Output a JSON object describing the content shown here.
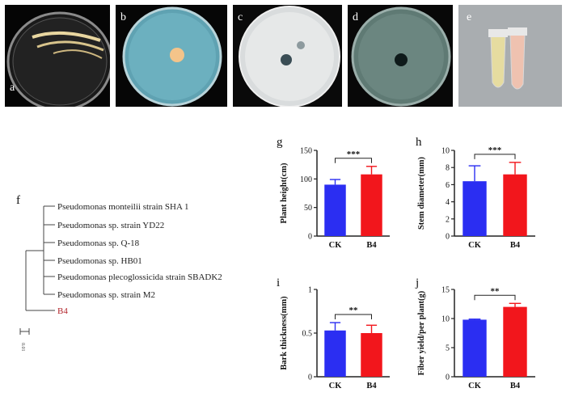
{
  "labels": {
    "a": "a",
    "b": "b",
    "c": "c",
    "d": "d",
    "e": "e",
    "f": "f",
    "g": "g",
    "h": "h",
    "i": "i",
    "j": "j"
  },
  "tree": {
    "taxa": [
      "Pseudomonas monteilii strain SHA 1",
      "Pseudomonas sp. strain YD22",
      "Pseudomonas sp. Q-18",
      "Pseudomonas sp. HB01",
      "Pseudomonas plecoglossicida strain SBADK2",
      "Pseudomonas sp. strain M2",
      "B4"
    ],
    "scale_label": "0.01",
    "highlight_color": "#b2242a"
  },
  "colors": {
    "ck": "#2b2ef2",
    "b4": "#f2161c",
    "axis": "#222222"
  },
  "chart_data": [
    {
      "id": "g",
      "type": "bar",
      "categories": [
        "CK",
        "B4"
      ],
      "values": [
        90,
        108
      ],
      "errors": [
        9,
        14
      ],
      "ylabel": "Plant height(cm)",
      "ylim": [
        0,
        150
      ],
      "yticks": [
        0,
        50,
        100,
        150
      ],
      "significance": "***"
    },
    {
      "id": "h",
      "type": "bar",
      "categories": [
        "CK",
        "B4"
      ],
      "values": [
        6.4,
        7.2
      ],
      "errors": [
        1.8,
        1.4
      ],
      "ylabel": "Stem diameter(mm)",
      "ylim": [
        0,
        10
      ],
      "yticks": [
        0,
        2,
        4,
        6,
        8,
        10
      ],
      "significance": "***"
    },
    {
      "id": "i",
      "type": "bar",
      "categories": [
        "CK",
        "B4"
      ],
      "values": [
        0.53,
        0.5
      ],
      "errors": [
        0.09,
        0.09
      ],
      "ylabel": "Bark thickness(mm)",
      "ylim": [
        0,
        1.0
      ],
      "yticks": [
        0.0,
        0.5,
        1.0
      ],
      "significance": "**"
    },
    {
      "id": "j",
      "type": "bar",
      "categories": [
        "CK",
        "B4"
      ],
      "values": [
        9.8,
        12.0
      ],
      "errors": [
        0.1,
        0.6
      ],
      "ylabel": "Fiber yield/per plant(g)",
      "ylim": [
        0,
        15
      ],
      "yticks": [
        0,
        5,
        10,
        15
      ],
      "significance": "**"
    }
  ]
}
